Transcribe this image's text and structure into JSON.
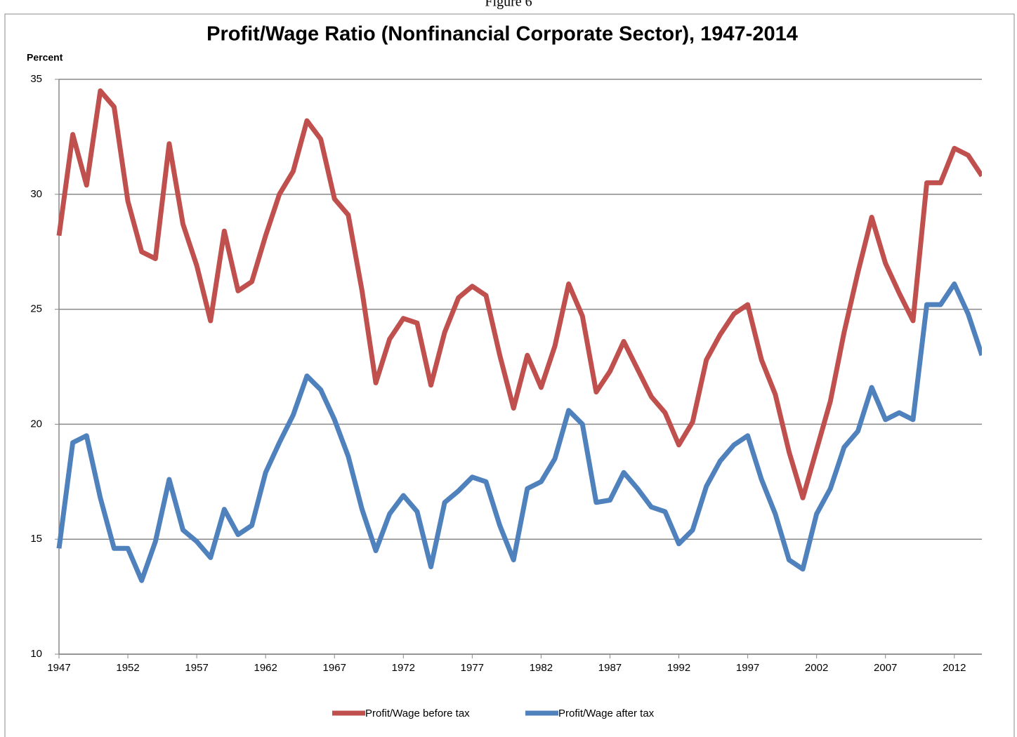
{
  "chart_data": {
    "type": "line",
    "caption": "Figure 6",
    "title": "Profit/Wage Ratio (Nonfinancial Corporate Sector), 1947-2014",
    "ylabel": "Percent",
    "x": [
      1947,
      1948,
      1949,
      1950,
      1951,
      1952,
      1953,
      1954,
      1955,
      1956,
      1957,
      1958,
      1959,
      1960,
      1961,
      1962,
      1963,
      1964,
      1965,
      1966,
      1967,
      1968,
      1969,
      1970,
      1971,
      1972,
      1973,
      1974,
      1975,
      1976,
      1977,
      1978,
      1979,
      1980,
      1981,
      1982,
      1983,
      1984,
      1985,
      1986,
      1987,
      1988,
      1989,
      1990,
      1991,
      1992,
      1993,
      1994,
      1995,
      1996,
      1997,
      1998,
      1999,
      2000,
      2001,
      2002,
      2003,
      2004,
      2005,
      2006,
      2007,
      2008,
      2009,
      2010,
      2011,
      2012,
      2013,
      2014
    ],
    "series": [
      {
        "name": "Profit/Wage before tax",
        "color": "#c0504d",
        "values": [
          28.2,
          32.6,
          30.4,
          34.5,
          33.8,
          29.7,
          27.5,
          27.2,
          32.2,
          28.7,
          26.9,
          24.5,
          28.4,
          25.8,
          26.2,
          28.2,
          30.0,
          31.0,
          33.2,
          32.4,
          29.8,
          29.1,
          25.8,
          21.8,
          23.7,
          24.6,
          24.4,
          21.7,
          24.0,
          25.5,
          26.0,
          25.6,
          23.0,
          20.7,
          23.0,
          21.6,
          23.4,
          26.1,
          24.7,
          21.4,
          22.3,
          23.6,
          22.4,
          21.2,
          20.5,
          19.1,
          20.1,
          22.8,
          23.9,
          24.8,
          25.2,
          22.8,
          21.3,
          18.8,
          16.8,
          18.9,
          21.0,
          24.0,
          26.6,
          29.0,
          27.0,
          25.7,
          24.5,
          30.5,
          30.5,
          32.0,
          31.7,
          30.8
        ]
      },
      {
        "name": "Profit/Wage after tax",
        "color": "#4f81bd",
        "values": [
          14.6,
          19.2,
          19.5,
          16.8,
          14.6,
          14.6,
          13.2,
          14.9,
          17.6,
          15.4,
          14.9,
          14.2,
          16.3,
          15.2,
          15.6,
          17.9,
          19.2,
          20.4,
          22.1,
          21.5,
          20.2,
          18.6,
          16.3,
          14.5,
          16.1,
          16.9,
          16.2,
          13.8,
          16.6,
          17.1,
          17.7,
          17.5,
          15.6,
          14.1,
          17.2,
          17.5,
          18.5,
          20.6,
          20.0,
          16.6,
          16.7,
          17.9,
          17.2,
          16.4,
          16.2,
          14.8,
          15.4,
          17.3,
          18.4,
          19.1,
          19.5,
          17.6,
          16.1,
          14.1,
          13.7,
          16.1,
          17.2,
          19.0,
          19.7,
          21.6,
          20.2,
          20.5,
          20.2,
          25.2,
          25.2,
          26.1,
          24.8,
          23.0
        ]
      }
    ],
    "xlim": [
      1947,
      2014
    ],
    "xticks": [
      1947,
      1952,
      1957,
      1962,
      1967,
      1972,
      1977,
      1982,
      1987,
      1992,
      1997,
      2002,
      2007,
      2012
    ],
    "ylim": [
      10,
      35
    ],
    "yticks": [
      10,
      15,
      20,
      25,
      30,
      35
    ],
    "grid": true,
    "legend": "bottom"
  }
}
